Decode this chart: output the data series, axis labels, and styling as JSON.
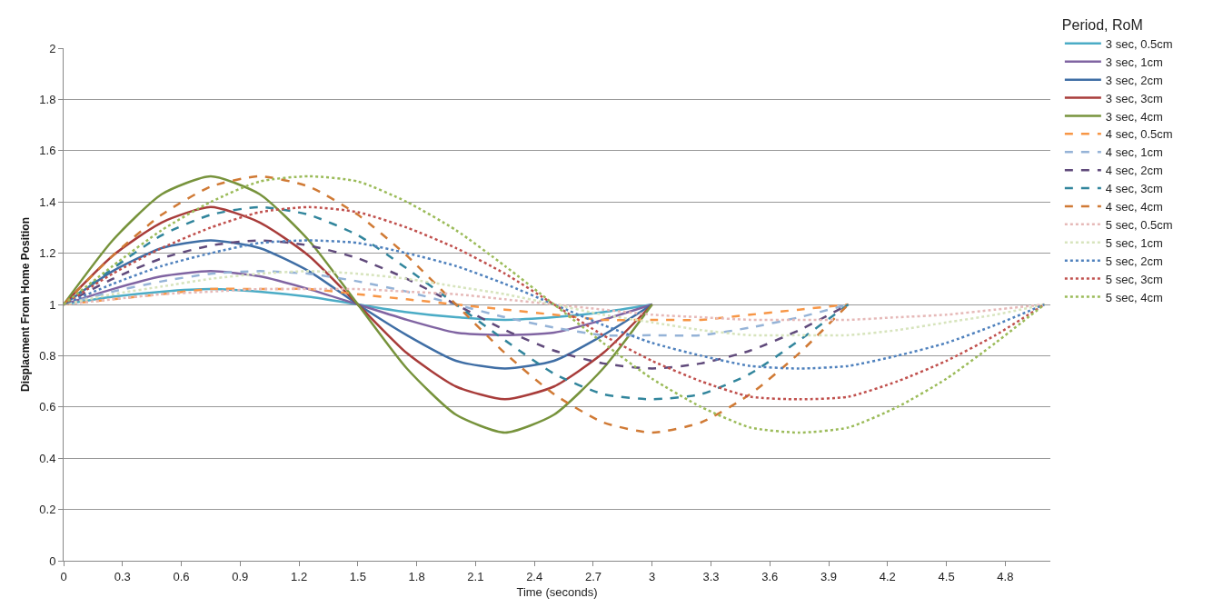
{
  "chart_data": {
    "type": "line",
    "xlabel": "Time (seconds)",
    "ylabel": "Displacment From Home Position",
    "legend_title": "Period, RoM",
    "legend": "right",
    "grid": "y",
    "marker": "none",
    "xlim": [
      0,
      5.03
    ],
    "xticks": [
      0,
      0.3,
      0.6,
      0.9,
      1.2,
      1.5,
      1.8,
      2.1,
      2.4,
      2.7,
      3,
      3.3,
      3.6,
      3.9,
      4.2,
      4.5,
      4.8
    ],
    "ylim": [
      0,
      2
    ],
    "yticks": [
      0,
      0.2,
      0.4,
      0.6,
      0.8,
      1,
      1.2,
      1.4,
      1.6,
      1.8,
      2
    ],
    "series": [
      {
        "name": "3 sec, 0.5cm",
        "color": "#4bacc6",
        "line_style": "solid",
        "x": [
          0,
          0.25,
          0.5,
          0.75,
          1,
          1.25,
          1.5,
          1.75,
          2,
          2.25,
          2.5,
          2.75,
          3
        ],
        "values": [
          1,
          1.03,
          1.05,
          1.06,
          1.05,
          1.03,
          1,
          0.97,
          0.95,
          0.94,
          0.95,
          0.97,
          1
        ]
      },
      {
        "name": "3 sec, 1cm",
        "color": "#8064a2",
        "line_style": "solid",
        "x": [
          0,
          0.25,
          0.5,
          0.75,
          1,
          1.25,
          1.5,
          1.75,
          2,
          2.25,
          2.5,
          2.75,
          3
        ],
        "values": [
          1,
          1.06,
          1.11,
          1.13,
          1.11,
          1.06,
          1,
          0.94,
          0.89,
          0.88,
          0.89,
          0.94,
          1
        ]
      },
      {
        "name": "3 sec, 2cm",
        "color": "#3f6ea5",
        "line_style": "solid",
        "x": [
          0,
          0.25,
          0.5,
          0.75,
          1,
          1.25,
          1.5,
          1.75,
          2,
          2.25,
          2.5,
          2.75,
          3
        ],
        "values": [
          1,
          1.13,
          1.22,
          1.25,
          1.22,
          1.13,
          1,
          0.88,
          0.78,
          0.75,
          0.78,
          0.88,
          1
        ]
      },
      {
        "name": "3 sec, 3cm",
        "color": "#a83c3a",
        "line_style": "solid",
        "x": [
          0,
          0.25,
          0.5,
          0.75,
          1,
          1.25,
          1.5,
          1.75,
          2,
          2.25,
          2.5,
          2.75,
          3
        ],
        "values": [
          1,
          1.19,
          1.32,
          1.38,
          1.32,
          1.19,
          1,
          0.81,
          0.68,
          0.63,
          0.68,
          0.81,
          1
        ]
      },
      {
        "name": "3 sec, 4cm",
        "color": "#77933c",
        "line_style": "solid",
        "x": [
          0,
          0.25,
          0.5,
          0.75,
          1,
          1.25,
          1.5,
          1.75,
          2,
          2.25,
          2.5,
          2.75,
          3
        ],
        "values": [
          1,
          1.25,
          1.43,
          1.5,
          1.43,
          1.25,
          1,
          0.75,
          0.57,
          0.5,
          0.57,
          0.75,
          1
        ]
      },
      {
        "name": "4 sec, 0.5cm",
        "color": "#f79646",
        "line_style": "dashed",
        "x": [
          0,
          0.25,
          0.5,
          0.75,
          1,
          1.25,
          1.5,
          1.75,
          2,
          2.25,
          2.5,
          2.75,
          3,
          3.25,
          3.5,
          3.75,
          4
        ],
        "values": [
          1,
          1.02,
          1.04,
          1.06,
          1.06,
          1.06,
          1.04,
          1.02,
          1,
          0.98,
          0.96,
          0.94,
          0.94,
          0.94,
          0.96,
          0.98,
          1
        ]
      },
      {
        "name": "4 sec, 1cm",
        "color": "#95b3d7",
        "line_style": "dashed",
        "x": [
          0,
          0.25,
          0.5,
          0.75,
          1,
          1.25,
          1.5,
          1.75,
          2,
          2.25,
          2.5,
          2.75,
          3,
          3.25,
          3.5,
          3.75,
          4
        ],
        "values": [
          1,
          1.05,
          1.09,
          1.12,
          1.13,
          1.12,
          1.09,
          1.05,
          1,
          0.95,
          0.91,
          0.88,
          0.88,
          0.88,
          0.91,
          0.95,
          1
        ]
      },
      {
        "name": "4 sec, 2cm",
        "color": "#604a7b",
        "line_style": "dashed",
        "x": [
          0,
          0.25,
          0.5,
          0.75,
          1,
          1.25,
          1.5,
          1.75,
          2,
          2.25,
          2.5,
          2.75,
          3,
          3.25,
          3.5,
          3.75,
          4
        ],
        "values": [
          1,
          1.1,
          1.18,
          1.23,
          1.25,
          1.23,
          1.18,
          1.1,
          1,
          0.9,
          0.82,
          0.77,
          0.75,
          0.77,
          0.82,
          0.9,
          1
        ]
      },
      {
        "name": "4 sec, 3cm",
        "color": "#31859c",
        "line_style": "dashed",
        "x": [
          0,
          0.25,
          0.5,
          0.75,
          1,
          1.25,
          1.5,
          1.75,
          2,
          2.25,
          2.5,
          2.75,
          3,
          3.25,
          3.5,
          3.75,
          4
        ],
        "values": [
          1,
          1.14,
          1.27,
          1.35,
          1.38,
          1.35,
          1.27,
          1.14,
          1,
          0.86,
          0.73,
          0.65,
          0.63,
          0.65,
          0.73,
          0.86,
          1
        ]
      },
      {
        "name": "4 sec, 4cm",
        "color": "#d07a35",
        "line_style": "dashed",
        "x": [
          0,
          0.25,
          0.5,
          0.75,
          1,
          1.25,
          1.5,
          1.75,
          2,
          2.25,
          2.5,
          2.75,
          3,
          3.25,
          3.5,
          3.75,
          4
        ],
        "values": [
          1,
          1.19,
          1.35,
          1.46,
          1.5,
          1.46,
          1.35,
          1.19,
          1,
          0.81,
          0.65,
          0.54,
          0.5,
          0.54,
          0.65,
          0.81,
          1
        ]
      },
      {
        "name": "5 sec, 0.5cm",
        "color": "#e6b9b8",
        "line_style": "dotted",
        "x": [
          0,
          0.25,
          0.5,
          0.75,
          1,
          1.25,
          1.5,
          1.75,
          2,
          2.25,
          2.5,
          2.75,
          3,
          3.25,
          3.5,
          3.75,
          4,
          4.25,
          4.5,
          4.75,
          5
        ],
        "values": [
          1,
          1.02,
          1.04,
          1.05,
          1.06,
          1.06,
          1.06,
          1.05,
          1.04,
          1.02,
          1,
          0.98,
          0.96,
          0.95,
          0.94,
          0.94,
          0.94,
          0.95,
          0.96,
          0.98,
          1
        ]
      },
      {
        "name": "5 sec, 1cm",
        "color": "#d7e4bd",
        "line_style": "dotted",
        "x": [
          0,
          0.25,
          0.5,
          0.75,
          1,
          1.25,
          1.5,
          1.75,
          2,
          2.25,
          2.5,
          2.75,
          3,
          3.25,
          3.5,
          3.75,
          4,
          4.25,
          4.5,
          4.75,
          5
        ],
        "values": [
          1,
          1.04,
          1.07,
          1.1,
          1.12,
          1.13,
          1.12,
          1.1,
          1.07,
          1.04,
          1,
          0.96,
          0.93,
          0.9,
          0.88,
          0.88,
          0.88,
          0.9,
          0.93,
          0.96,
          1
        ]
      },
      {
        "name": "5 sec, 2cm",
        "color": "#4f81bd",
        "line_style": "dotted",
        "x": [
          0,
          0.25,
          0.5,
          0.75,
          1,
          1.25,
          1.5,
          1.75,
          2,
          2.25,
          2.5,
          2.75,
          3,
          3.25,
          3.5,
          3.75,
          4,
          4.25,
          4.5,
          4.75,
          5
        ],
        "values": [
          1,
          1.08,
          1.15,
          1.2,
          1.24,
          1.25,
          1.24,
          1.2,
          1.15,
          1.08,
          1,
          0.92,
          0.85,
          0.8,
          0.76,
          0.75,
          0.76,
          0.8,
          0.85,
          0.92,
          1
        ]
      },
      {
        "name": "5 sec, 3cm",
        "color": "#c0504d",
        "line_style": "dotted",
        "x": [
          0,
          0.25,
          0.5,
          0.75,
          1,
          1.25,
          1.5,
          1.75,
          2,
          2.25,
          2.5,
          2.75,
          3,
          3.25,
          3.5,
          3.75,
          4,
          4.25,
          4.5,
          4.75,
          5
        ],
        "values": [
          1,
          1.12,
          1.22,
          1.3,
          1.36,
          1.38,
          1.36,
          1.3,
          1.22,
          1.12,
          1,
          0.88,
          0.78,
          0.7,
          0.64,
          0.63,
          0.64,
          0.7,
          0.78,
          0.88,
          1
        ]
      },
      {
        "name": "5 sec, 4cm",
        "color": "#9bbb59",
        "line_style": "dotted",
        "x": [
          0,
          0.25,
          0.5,
          0.75,
          1,
          1.25,
          1.5,
          1.75,
          2,
          2.25,
          2.5,
          2.75,
          3,
          3.25,
          3.5,
          3.75,
          4,
          4.25,
          4.5,
          4.75,
          5
        ],
        "values": [
          1,
          1.15,
          1.29,
          1.4,
          1.48,
          1.5,
          1.48,
          1.4,
          1.29,
          1.15,
          1,
          0.85,
          0.71,
          0.6,
          0.52,
          0.5,
          0.52,
          0.6,
          0.71,
          0.85,
          1
        ]
      }
    ]
  }
}
